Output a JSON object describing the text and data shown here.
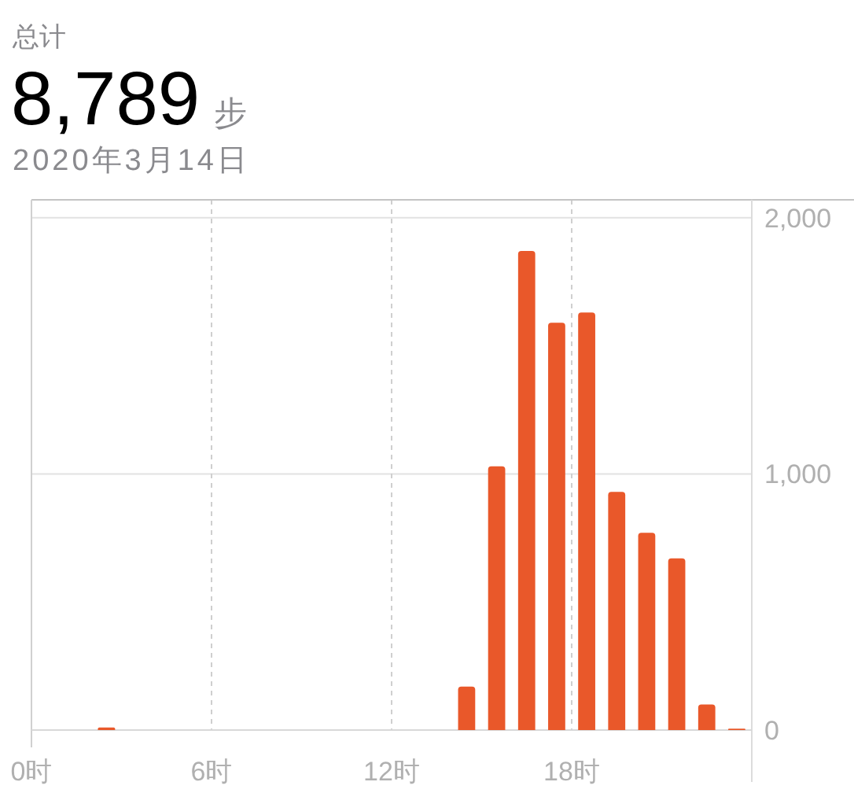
{
  "chart_data": {
    "type": "histogram",
    "title": "总计",
    "subtitle": "2020年3月14日",
    "annotations": [
      "8,789",
      "步"
    ],
    "bins": [
      0,
      1,
      2,
      3,
      4,
      5,
      6,
      7,
      8,
      9,
      10,
      11,
      12,
      13,
      14,
      15,
      16,
      17,
      18,
      19,
      20,
      21,
      22,
      23,
      24
    ],
    "values": [
      0,
      0,
      10,
      0,
      0,
      0,
      0,
      0,
      0,
      0,
      0,
      0,
      0,
      0,
      170,
      1030,
      1870,
      1590,
      1630,
      930,
      770,
      670,
      100,
      5
    ],
    "color": "#e9582a",
    "xlim": [
      0,
      24
    ],
    "xticks": [
      {
        "value": 0,
        "label": "0时"
      },
      {
        "value": 6,
        "label": "6时"
      },
      {
        "value": 12,
        "label": "12时"
      },
      {
        "value": 18,
        "label": "18时"
      }
    ],
    "ylim": [
      0,
      2070
    ],
    "yticks": [
      0,
      {
        "value": 1000,
        "label": "1,000"
      },
      {
        "value": 2000,
        "label": "2,000"
      }
    ],
    "grid": true
  }
}
